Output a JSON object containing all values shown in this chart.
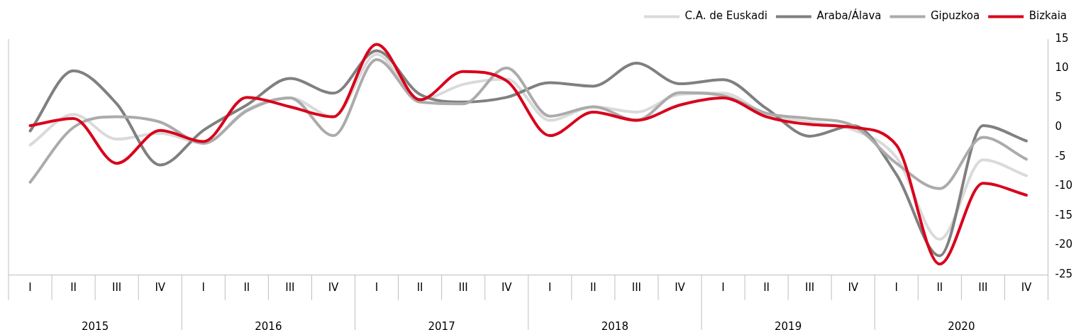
{
  "chart_data": {
    "type": "line",
    "categories": [
      "I",
      "II",
      "III",
      "IV",
      "I",
      "II",
      "III",
      "IV",
      "I",
      "II",
      "III",
      "IV",
      "I",
      "II",
      "III",
      "IV",
      "I",
      "II",
      "III",
      "IV",
      "I",
      "II",
      "III",
      "IV"
    ],
    "series": [
      {
        "name": "C.A. de Euskadi",
        "color": "#dadada",
        "values": [
          -3,
          2.2,
          -2,
          -1,
          -2.7,
          3,
          5,
          1.8,
          12.4,
          4.7,
          7.3,
          8.2,
          1.2,
          3.5,
          2.6,
          5.6,
          5.8,
          2.2,
          0.9,
          -0.4,
          -5.1,
          -19,
          -5.5,
          -8.2
        ]
      },
      {
        "name": "Araba/Álava",
        "color": "#808080",
        "values": [
          -0.6,
          9.6,
          4,
          -6.4,
          -0.5,
          3.8,
          8.3,
          5.8,
          13,
          5.6,
          4.3,
          5.1,
          7.6,
          7,
          10.9,
          7.4,
          8.1,
          3.2,
          -1.5,
          0.3,
          -8,
          -21.8,
          0.3,
          -2.3
        ]
      },
      {
        "name": "Gipuzkoa",
        "color": "#ababab",
        "values": [
          -9.3,
          0,
          1.8,
          0.9,
          -2.7,
          2.8,
          5,
          -1.4,
          11.5,
          4.3,
          4,
          10.1,
          1.9,
          3.5,
          1.2,
          5.9,
          5.4,
          2.4,
          1.5,
          0.3,
          -6.1,
          -10.4,
          -1.7,
          -5.4
        ]
      },
      {
        "name": "Bizkaia",
        "color": "#d9001b",
        "values": [
          0.3,
          1.5,
          -6.1,
          -0.5,
          -2.4,
          5.1,
          3.5,
          1.8,
          14.1,
          4.7,
          9.5,
          7.9,
          -1.4,
          2.6,
          1.2,
          3.8,
          5,
          1.8,
          0.5,
          0,
          -3,
          -23.2,
          -9.5,
          -11.5
        ]
      }
    ],
    "ylim": [
      -25,
      15
    ],
    "yticks": [
      -25,
      -20,
      -15,
      -10,
      -5,
      0,
      5,
      10,
      15
    ],
    "grid": false,
    "legend": "top right",
    "annotations": [
      "2015",
      "2016",
      "2017",
      "2018",
      "2019",
      "2020"
    ]
  }
}
